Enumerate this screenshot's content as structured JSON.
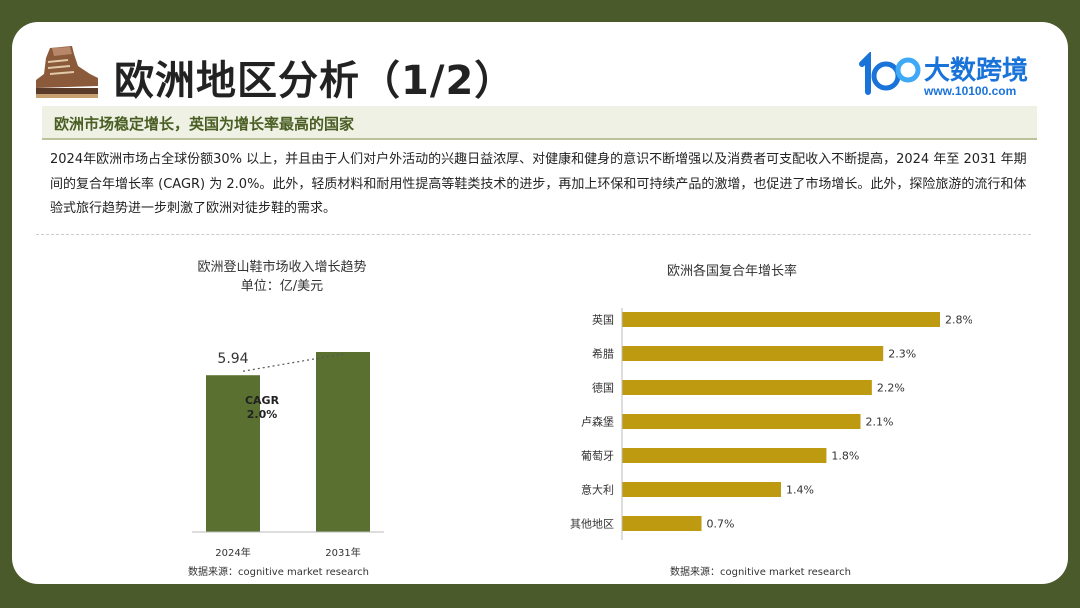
{
  "header": {
    "title": "欧洲地区分析（1/2）",
    "logo_name": "大数跨境",
    "logo_url": "www.10100.com"
  },
  "subtitle": "欧洲市场稳定增长，英国为增长率最高的国家",
  "paragraph": "2024年欧洲市场占全球份额30% 以上，并且由于人们对户外活动的兴趣日益浓厚、对健康和健身的意识不断增强以及消费者可支配收入不断提高，2024 年至 2031 年期间的复合年增长率 (CAGR) 为 2.0%。此外，轻质材料和耐用性提高等鞋类技术的进步，再加上环保和可持续产品的激增，也促进了市场增长。此外，探险旅游的流行和体验式旅行趋势进一步刺激了欧洲对徒步鞋的需求。",
  "colors": {
    "bar_left": "#5a7031",
    "bar_right": "#bd9a10",
    "accent": "#4a5e23"
  },
  "chart_data": [
    {
      "type": "bar",
      "title": "欧洲登山鞋市场收入增长趋势",
      "subtitle": "单位：亿/美元",
      "categories": [
        "2024年",
        "2031年"
      ],
      "values": [
        5.94,
        6.82
      ],
      "data_labels": [
        "5.94",
        ""
      ],
      "annotation": {
        "line1": "CAGR",
        "line2": "2.0%"
      },
      "source": "数据来源：cognitive market research"
    },
    {
      "type": "bar",
      "orientation": "horizontal",
      "title": "欧洲各国复合年增长率",
      "categories": [
        "英国",
        "希腊",
        "德国",
        "卢森堡",
        "葡萄牙",
        "意大利",
        "其他地区"
      ],
      "values": [
        2.8,
        2.3,
        2.2,
        2.1,
        1.8,
        1.4,
        0.7
      ],
      "data_labels": [
        "2.8%",
        "2.3%",
        "2.2%",
        "2.1%",
        "1.8%",
        "1.4%",
        "0.7%"
      ],
      "source": "数据来源：cognitive market research"
    }
  ]
}
